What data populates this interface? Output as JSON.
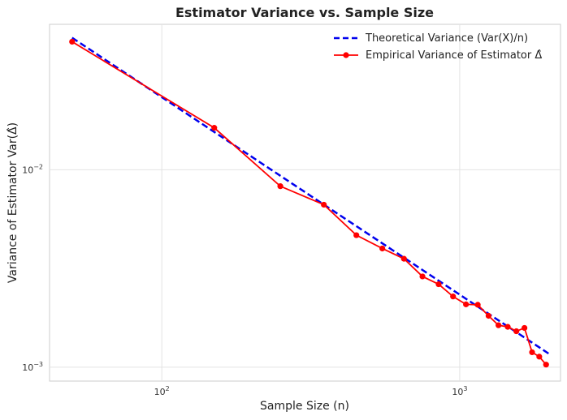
{
  "chart_data": {
    "type": "line",
    "title": "Estimator Variance vs. Sample Size",
    "xlabel": "Sample Size (n)",
    "ylabel": "Variance of Estimator Var(Δ̂)",
    "xscale": "log",
    "yscale": "log",
    "xlim": [
      42,
      2180
    ],
    "ylim": [
      0.00085,
      0.0545
    ],
    "x_ticks": [
      {
        "value": 100,
        "base": "10",
        "exp": "2"
      },
      {
        "value": 1000,
        "base": "10",
        "exp": "3"
      }
    ],
    "y_ticks": [
      {
        "value": 0.01,
        "base": "10",
        "exp": "−2"
      },
      {
        "value": 0.001,
        "base": "10",
        "exp": "−3"
      }
    ],
    "grid": true,
    "legend_position": "top-right",
    "series": [
      {
        "name": "Theoretical Variance (Var(X)/n)",
        "style": "dashed",
        "color": "#0000ee",
        "x": [
          50,
          2000
        ],
        "y": [
          0.0466,
          0.001165
        ]
      },
      {
        "name": "Empirical Variance of Estimator Δ̂",
        "style": "solid-markers",
        "color": "#ff0000",
        "x": [
          50,
          150,
          250,
          350,
          450,
          550,
          650,
          750,
          850,
          950,
          1050,
          1150,
          1250,
          1350,
          1450,
          1550,
          1650,
          1750,
          1850,
          1950
        ],
        "y": [
          0.0445,
          0.0163,
          0.00825,
          0.00665,
          0.00466,
          0.00399,
          0.00354,
          0.00288,
          0.00263,
          0.00228,
          0.00208,
          0.00207,
          0.00182,
          0.00163,
          0.0016,
          0.00152,
          0.00158,
          0.00119,
          0.00113,
          0.00103
        ]
      }
    ]
  }
}
